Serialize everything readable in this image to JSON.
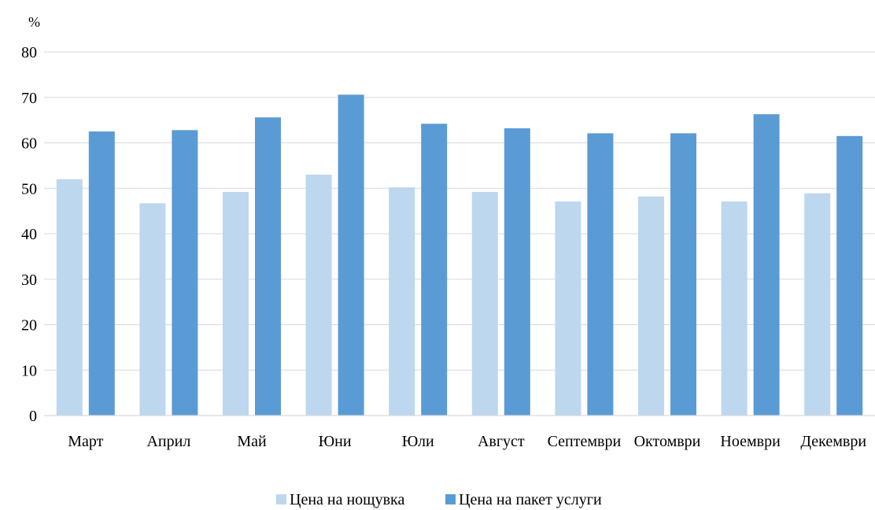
{
  "chart_data": {
    "type": "bar",
    "ylabel": "%",
    "ylim": [
      0,
      80
    ],
    "yticks": [
      0,
      10,
      20,
      30,
      40,
      50,
      60,
      70,
      80
    ],
    "grid": true,
    "legend_position": "bottom",
    "categories": [
      "Март",
      "Април",
      "Май",
      "Юни",
      "Юли",
      "Август",
      "Септември",
      "Октомври",
      "Ноември",
      "Декември"
    ],
    "series": [
      {
        "name": "Цена на нощувка",
        "color": "#bdd7ee",
        "values": [
          52.0,
          46.7,
          49.2,
          53.0,
          50.2,
          49.2,
          47.1,
          48.2,
          47.1,
          48.9
        ]
      },
      {
        "name": "Цена на пакет услуги",
        "color": "#5b9bd5",
        "values": [
          62.5,
          62.8,
          65.6,
          70.6,
          64.2,
          63.2,
          62.1,
          62.1,
          66.3,
          61.5
        ]
      }
    ]
  }
}
